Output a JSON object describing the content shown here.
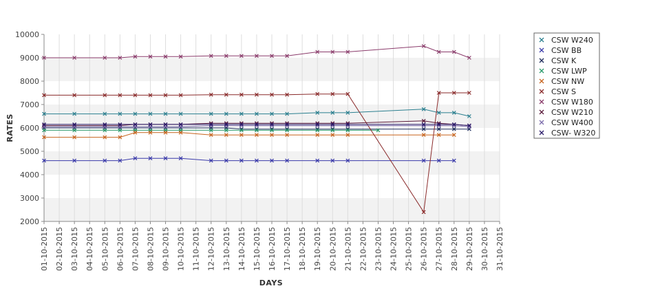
{
  "chart_data": {
    "type": "line",
    "title": "",
    "xlabel": "DAYS",
    "ylabel": "RATES",
    "ylim": [
      2000,
      10000
    ],
    "y_ticks": [
      2000,
      3000,
      4000,
      5000,
      6000,
      7000,
      8000,
      9000,
      10000
    ],
    "grid": "horizontal bands",
    "legend_position": "right",
    "categories": [
      "01-10-2015",
      "02-10-2015",
      "03-10-2015",
      "04-10-2015",
      "05-10-2015",
      "06-10-2015",
      "07-10-2015",
      "08-10-2015",
      "09-10-2015",
      "10-10-2015",
      "11-10-2015",
      "12-10-2015",
      "13-10-2015",
      "14-10-2015",
      "15-10-2015",
      "16-10-2015",
      "17-10-2015",
      "18-10-2015",
      "19-10-2015",
      "20-10-2015",
      "21-10-2015",
      "22-10-2015",
      "23-10-2015",
      "24-10-2015",
      "25-10-2015",
      "26-10-2015",
      "27-10-2015",
      "28-10-2015",
      "29-10-2015",
      "30-10-2015",
      "31-10-2015"
    ],
    "series": [
      {
        "name": "CSW  W240",
        "color": "#2a7f8f",
        "points": [
          [
            0,
            6600
          ],
          [
            2,
            6600
          ],
          [
            4,
            6600
          ],
          [
            5,
            6600
          ],
          [
            6,
            6600
          ],
          [
            7,
            6600
          ],
          [
            8,
            6600
          ],
          [
            9,
            6600
          ],
          [
            11,
            6600
          ],
          [
            12,
            6600
          ],
          [
            13,
            6600
          ],
          [
            14,
            6600
          ],
          [
            15,
            6600
          ],
          [
            16,
            6600
          ],
          [
            18,
            6650
          ],
          [
            19,
            6650
          ],
          [
            20,
            6650
          ],
          [
            25,
            6800
          ],
          [
            26,
            6650
          ],
          [
            27,
            6650
          ],
          [
            28,
            6500
          ]
        ]
      },
      {
        "name": "CSW BB",
        "color": "#3a3aaa",
        "points": [
          [
            0,
            4600
          ],
          [
            2,
            4600
          ],
          [
            4,
            4600
          ],
          [
            5,
            4600
          ],
          [
            6,
            4700
          ],
          [
            7,
            4700
          ],
          [
            8,
            4700
          ],
          [
            9,
            4700
          ],
          [
            11,
            4600
          ],
          [
            12,
            4600
          ],
          [
            13,
            4600
          ],
          [
            14,
            4600
          ],
          [
            15,
            4600
          ],
          [
            16,
            4600
          ],
          [
            18,
            4600
          ],
          [
            19,
            4600
          ],
          [
            20,
            4600
          ],
          [
            25,
            4600
          ],
          [
            26,
            4600
          ],
          [
            27,
            4600
          ]
        ]
      },
      {
        "name": "CSW K",
        "color": "#1a2a5a",
        "points": [
          [
            0,
            6000
          ],
          [
            2,
            6000
          ],
          [
            4,
            6000
          ],
          [
            5,
            6000
          ],
          [
            6,
            6000
          ],
          [
            7,
            6000
          ],
          [
            8,
            6000
          ],
          [
            9,
            6000
          ],
          [
            11,
            6000
          ],
          [
            12,
            6000
          ],
          [
            13,
            5950
          ],
          [
            14,
            5950
          ],
          [
            15,
            5950
          ],
          [
            16,
            5950
          ],
          [
            18,
            5950
          ],
          [
            19,
            5950
          ],
          [
            20,
            5950
          ],
          [
            25,
            5950
          ],
          [
            26,
            5950
          ],
          [
            27,
            5950
          ],
          [
            28,
            5950
          ]
        ]
      },
      {
        "name": "CSW LWP",
        "color": "#2a9a6a",
        "points": [
          [
            0,
            5900
          ],
          [
            2,
            5900
          ],
          [
            4,
            5900
          ],
          [
            5,
            5900
          ],
          [
            6,
            5900
          ],
          [
            7,
            5900
          ],
          [
            8,
            5900
          ],
          [
            9,
            5900
          ],
          [
            11,
            5900
          ],
          [
            12,
            5900
          ],
          [
            13,
            5900
          ],
          [
            14,
            5900
          ],
          [
            15,
            5900
          ],
          [
            16,
            5900
          ],
          [
            18,
            5900
          ],
          [
            19,
            5900
          ],
          [
            20,
            5900
          ],
          [
            22,
            5900
          ]
        ]
      },
      {
        "name": "CSW NW",
        "color": "#c8641e",
        "points": [
          [
            0,
            5600
          ],
          [
            2,
            5600
          ],
          [
            4,
            5600
          ],
          [
            5,
            5600
          ],
          [
            6,
            5800
          ],
          [
            7,
            5800
          ],
          [
            8,
            5800
          ],
          [
            9,
            5800
          ],
          [
            11,
            5700
          ],
          [
            12,
            5700
          ],
          [
            13,
            5700
          ],
          [
            14,
            5700
          ],
          [
            15,
            5700
          ],
          [
            16,
            5700
          ],
          [
            18,
            5700
          ],
          [
            19,
            5700
          ],
          [
            20,
            5700
          ],
          [
            25,
            5700
          ],
          [
            26,
            5700
          ],
          [
            27,
            5700
          ]
        ]
      },
      {
        "name": "CSW S",
        "color": "#8a2a2a",
        "points": [
          [
            0,
            7400
          ],
          [
            2,
            7400
          ],
          [
            4,
            7400
          ],
          [
            5,
            7400
          ],
          [
            6,
            7400
          ],
          [
            7,
            7400
          ],
          [
            8,
            7400
          ],
          [
            9,
            7400
          ],
          [
            11,
            7420
          ],
          [
            12,
            7420
          ],
          [
            13,
            7420
          ],
          [
            14,
            7420
          ],
          [
            15,
            7420
          ],
          [
            16,
            7420
          ],
          [
            18,
            7450
          ],
          [
            19,
            7450
          ],
          [
            20,
            7450
          ],
          [
            25,
            2400
          ],
          [
            26,
            7500
          ],
          [
            27,
            7500
          ],
          [
            28,
            7500
          ]
        ]
      },
      {
        "name": "CSW W180",
        "color": "#8a3a6a",
        "points": [
          [
            0,
            9000
          ],
          [
            2,
            9000
          ],
          [
            4,
            9000
          ],
          [
            5,
            9000
          ],
          [
            6,
            9050
          ],
          [
            7,
            9050
          ],
          [
            8,
            9050
          ],
          [
            9,
            9050
          ],
          [
            11,
            9080
          ],
          [
            12,
            9080
          ],
          [
            13,
            9080
          ],
          [
            14,
            9080
          ],
          [
            15,
            9080
          ],
          [
            16,
            9080
          ],
          [
            18,
            9250
          ],
          [
            19,
            9250
          ],
          [
            20,
            9250
          ],
          [
            25,
            9500
          ],
          [
            26,
            9250
          ],
          [
            27,
            9250
          ],
          [
            28,
            9000
          ]
        ]
      },
      {
        "name": "CSW W210",
        "color": "#5a1a3a",
        "points": [
          [
            0,
            6100
          ],
          [
            2,
            6100
          ],
          [
            4,
            6100
          ],
          [
            5,
            6100
          ],
          [
            6,
            6150
          ],
          [
            7,
            6150
          ],
          [
            8,
            6150
          ],
          [
            9,
            6150
          ],
          [
            11,
            6200
          ],
          [
            12,
            6200
          ],
          [
            13,
            6200
          ],
          [
            14,
            6200
          ],
          [
            15,
            6200
          ],
          [
            16,
            6200
          ],
          [
            18,
            6200
          ],
          [
            19,
            6200
          ],
          [
            20,
            6200
          ],
          [
            25,
            6300
          ],
          [
            26,
            6200
          ],
          [
            27,
            6150
          ],
          [
            28,
            6100
          ]
        ]
      },
      {
        "name": "CSW W400",
        "color": "#7a6aaa",
        "points": [
          [
            0,
            6050
          ],
          [
            2,
            6050
          ],
          [
            4,
            6050
          ],
          [
            5,
            6050
          ],
          [
            6,
            6050
          ],
          [
            7,
            6050
          ],
          [
            8,
            6050
          ],
          [
            9,
            6050
          ],
          [
            11,
            6100
          ],
          [
            12,
            6100
          ],
          [
            13,
            6100
          ],
          [
            14,
            6100
          ],
          [
            15,
            6100
          ],
          [
            16,
            6100
          ],
          [
            18,
            6100
          ],
          [
            19,
            6100
          ],
          [
            20,
            6100
          ],
          [
            25,
            6100
          ],
          [
            26,
            6100
          ],
          [
            27,
            6100
          ],
          [
            28,
            6050
          ]
        ]
      },
      {
        "name": "CSW- W320",
        "color": "#2a1a6a",
        "points": [
          [
            0,
            6150
          ],
          [
            2,
            6150
          ],
          [
            4,
            6150
          ],
          [
            5,
            6150
          ],
          [
            6,
            6150
          ],
          [
            7,
            6150
          ],
          [
            8,
            6150
          ],
          [
            9,
            6150
          ],
          [
            11,
            6150
          ],
          [
            12,
            6150
          ],
          [
            13,
            6150
          ],
          [
            14,
            6150
          ],
          [
            15,
            6150
          ],
          [
            16,
            6150
          ],
          [
            18,
            6150
          ],
          [
            19,
            6150
          ],
          [
            20,
            6150
          ],
          [
            25,
            6150
          ],
          [
            26,
            6150
          ],
          [
            27,
            6150
          ],
          [
            28,
            6100
          ]
        ]
      }
    ]
  }
}
